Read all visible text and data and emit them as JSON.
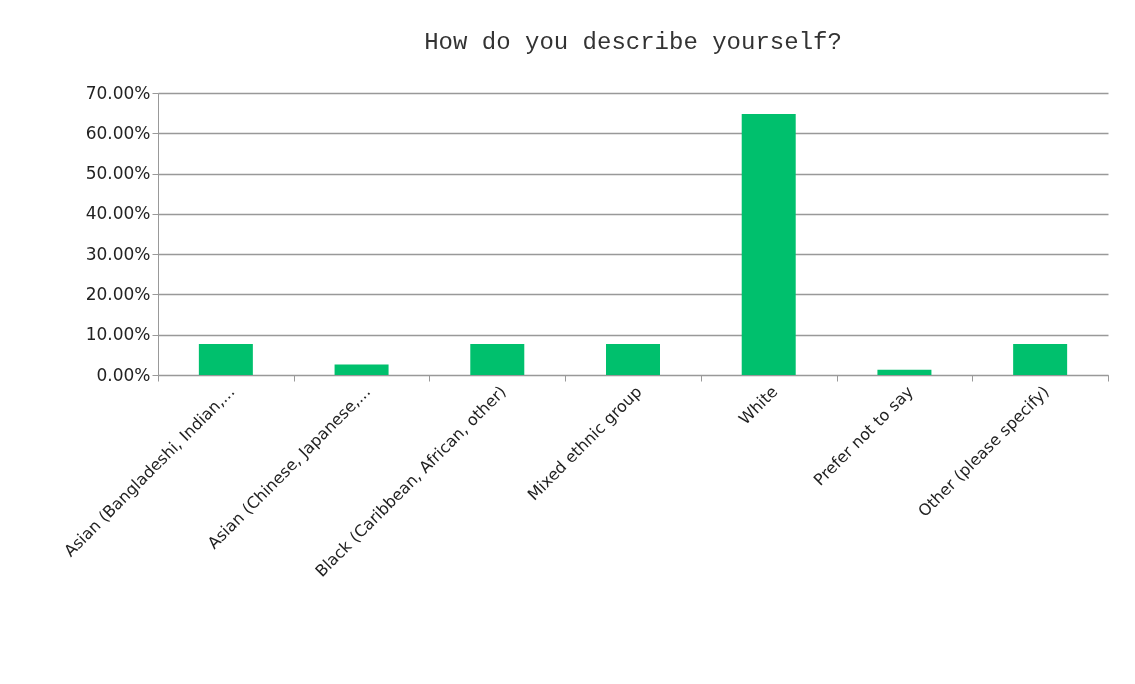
{
  "chart_data": {
    "type": "bar",
    "title": "How do you describe yourself?",
    "categories": [
      "Asian (Bangladeshi, Indian,...",
      "Asian (Chinese, Japanese,...",
      "Black (Caribbean, African, other)",
      "Mixed ethnic group",
      "White",
      "Prefer not to say",
      "Other (please specify)"
    ],
    "values": [
      7.7,
      2.6,
      7.7,
      7.7,
      64.8,
      1.3,
      7.7
    ],
    "color": "#00c06d",
    "ylim": [
      0,
      70
    ],
    "yticks": [
      {
        "value": 0,
        "label": "0.00%"
      },
      {
        "value": 10,
        "label": "10.00%"
      },
      {
        "value": 20,
        "label": "20.00%"
      },
      {
        "value": 30,
        "label": "30.00%"
      },
      {
        "value": 40,
        "label": "40.00%"
      },
      {
        "value": 50,
        "label": "50.00%"
      },
      {
        "value": 60,
        "label": "60.00%"
      },
      {
        "value": 70,
        "label": "70.00%"
      }
    ],
    "grid": "y"
  }
}
